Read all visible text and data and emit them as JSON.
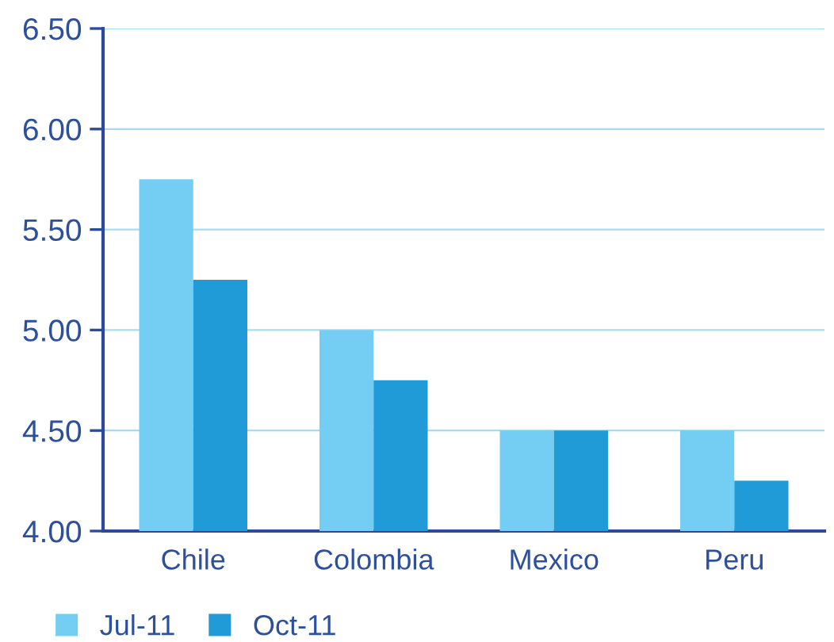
{
  "chart_data": {
    "type": "bar",
    "categories": [
      "Chile",
      "Colombia",
      "Mexico",
      "Peru"
    ],
    "series": [
      {
        "name": "Jul-11",
        "color": "#74cdf3",
        "values": [
          5.75,
          5.0,
          4.5,
          4.5
        ]
      },
      {
        "name": "Oct-11",
        "color": "#219bd7",
        "values": [
          5.25,
          4.75,
          4.5,
          4.25
        ]
      }
    ],
    "ylim": [
      4.0,
      6.5
    ],
    "yticks": [
      {
        "value": 4.0,
        "label": "4.00"
      },
      {
        "value": 4.5,
        "label": "4.50"
      },
      {
        "value": 5.0,
        "label": "5.00"
      },
      {
        "value": 5.5,
        "label": "5.50"
      },
      {
        "value": 6.0,
        "label": "6.00"
      },
      {
        "value": 6.5,
        "label": "6.50"
      }
    ],
    "grid": "y",
    "legend": "bottom left"
  }
}
